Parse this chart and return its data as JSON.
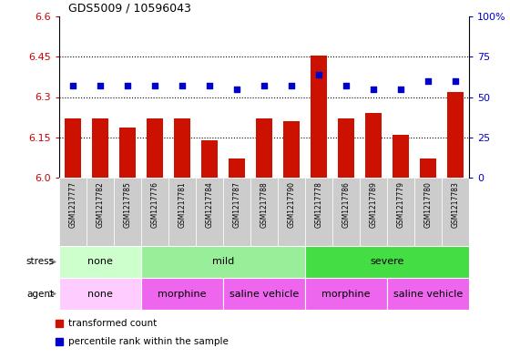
{
  "title": "GDS5009 / 10596043",
  "samples": [
    "GSM1217777",
    "GSM1217782",
    "GSM1217785",
    "GSM1217776",
    "GSM1217781",
    "GSM1217784",
    "GSM1217787",
    "GSM1217788",
    "GSM1217790",
    "GSM1217778",
    "GSM1217786",
    "GSM1217789",
    "GSM1217779",
    "GSM1217780",
    "GSM1217783"
  ],
  "bar_values": [
    6.22,
    6.22,
    6.185,
    6.22,
    6.22,
    6.14,
    6.07,
    6.22,
    6.21,
    6.455,
    6.22,
    6.24,
    6.16,
    6.07,
    6.32
  ],
  "dot_values": [
    57,
    57,
    57,
    57,
    57,
    57,
    55,
    57,
    57,
    64,
    57,
    55,
    55,
    60,
    60
  ],
  "bar_color": "#cc1100",
  "dot_color": "#0000cc",
  "ymin": 6.0,
  "ymax": 6.6,
  "yticks_left": [
    6.0,
    6.15,
    6.3,
    6.45,
    6.6
  ],
  "yticks_right": [
    0,
    25,
    50,
    75,
    100
  ],
  "hlines": [
    6.15,
    6.3,
    6.45
  ],
  "stress_groups": [
    {
      "label": "none",
      "start": 0,
      "end": 3,
      "color": "#ccffcc"
    },
    {
      "label": "mild",
      "start": 3,
      "end": 9,
      "color": "#88ee88"
    },
    {
      "label": "severe",
      "start": 9,
      "end": 15,
      "color": "#44dd44"
    }
  ],
  "agent_groups": [
    {
      "label": "none",
      "start": 0,
      "end": 3,
      "color": "#ffccff"
    },
    {
      "label": "morphine",
      "start": 3,
      "end": 6,
      "color": "#ee66ee"
    },
    {
      "label": "saline vehicle",
      "start": 6,
      "end": 9,
      "color": "#ee66ee"
    },
    {
      "label": "morphine",
      "start": 9,
      "end": 12,
      "color": "#ee66ee"
    },
    {
      "label": "saline vehicle",
      "start": 12,
      "end": 15,
      "color": "#ee66ee"
    }
  ],
  "legend_bar_label": "transformed count",
  "legend_dot_label": "percentile rank within the sample",
  "stress_label": "stress",
  "agent_label": "agent",
  "xlbl_bg_color": "#d0d0d0",
  "stress_label_color": "#555555",
  "agent_label_color": "#555555"
}
